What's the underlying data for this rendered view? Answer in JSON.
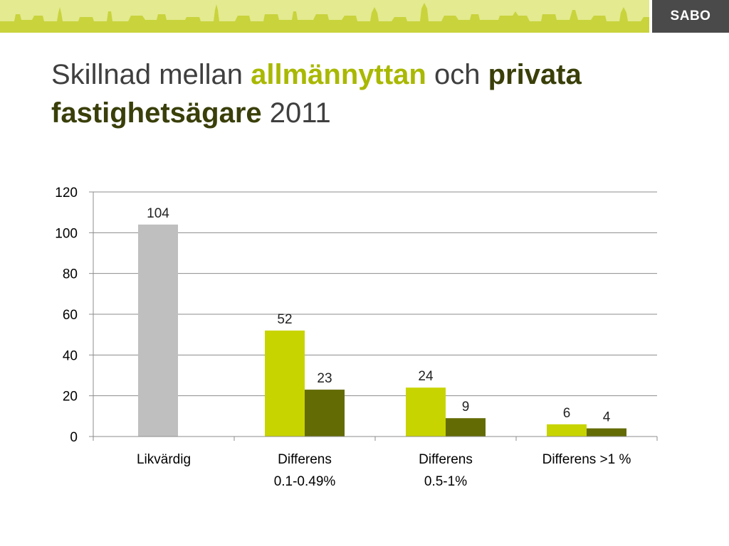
{
  "logo": {
    "text": "SABO"
  },
  "title": {
    "part1": "Skillnad mellan ",
    "highlight1": "allmännyttan",
    "part2": " och ",
    "highlight2": "privata fastighetsägare",
    "part3": " 2011"
  },
  "colors": {
    "banner": "#e3ea8f",
    "skyline": "#c8d23a",
    "logo_bg": "#4a4a4a",
    "gray_bar": "#bfbfbf",
    "lime_bar": "#c8d400",
    "olive_bar": "#636b05"
  },
  "chart_data": {
    "type": "bar",
    "ylim": [
      0,
      120
    ],
    "yticks": [
      0,
      20,
      40,
      60,
      80,
      100,
      120
    ],
    "grid": true,
    "categories": [
      [
        "Likvärdig"
      ],
      [
        "Differens",
        "0.1-0.49%"
      ],
      [
        "Differens",
        "0.5-1%"
      ],
      [
        "Differens  >1 %"
      ]
    ],
    "series": [
      {
        "color": "#bfbfbf",
        "values": [
          104,
          null,
          null,
          null
        ]
      },
      {
        "color": "#c8d400",
        "values": [
          null,
          52,
          24,
          6
        ]
      },
      {
        "color": "#636b05",
        "values": [
          null,
          23,
          9,
          4
        ]
      }
    ]
  }
}
